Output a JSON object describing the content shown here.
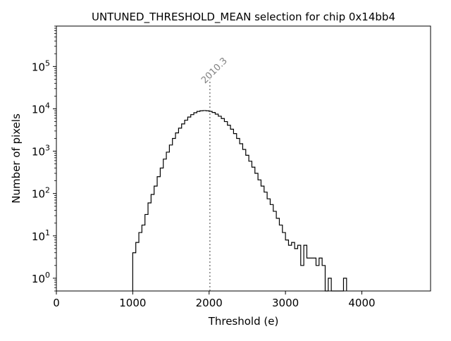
{
  "chart_data": {
    "type": "histogram",
    "title": "UNTUNED_THRESHOLD_MEAN selection for chip 0x14bb4",
    "xlabel": "Threshold (e)",
    "ylabel": "Number of pixels",
    "x_range": [
      0,
      4900
    ],
    "y_range": [
      0.5,
      900000
    ],
    "y_scale": "log",
    "x_ticks": [
      {
        "value": 0,
        "label": "0"
      },
      {
        "value": 1000,
        "label": "1000"
      },
      {
        "value": 2000,
        "label": "2000"
      },
      {
        "value": 3000,
        "label": "3000"
      },
      {
        "value": 4000,
        "label": "4000"
      }
    ],
    "y_ticks": [
      {
        "value": 1,
        "base": "10",
        "exp": "0"
      },
      {
        "value": 10,
        "base": "10",
        "exp": "1"
      },
      {
        "value": 100,
        "base": "10",
        "exp": "2"
      },
      {
        "value": 1000,
        "base": "10",
        "exp": "3"
      },
      {
        "value": 10000,
        "base": "10",
        "exp": "4"
      },
      {
        "value": 100000,
        "base": "10",
        "exp": "5"
      }
    ],
    "bin_width": 40,
    "series": [
      {
        "name": "pixels",
        "color": "#000000",
        "bins": [
          [
            1000,
            4
          ],
          [
            1040,
            7
          ],
          [
            1080,
            12
          ],
          [
            1120,
            18
          ],
          [
            1160,
            32
          ],
          [
            1200,
            60
          ],
          [
            1240,
            95
          ],
          [
            1280,
            150
          ],
          [
            1320,
            250
          ],
          [
            1360,
            400
          ],
          [
            1400,
            650
          ],
          [
            1440,
            950
          ],
          [
            1480,
            1400
          ],
          [
            1520,
            2000
          ],
          [
            1560,
            2700
          ],
          [
            1600,
            3500
          ],
          [
            1640,
            4400
          ],
          [
            1680,
            5400
          ],
          [
            1720,
            6400
          ],
          [
            1760,
            7300
          ],
          [
            1800,
            8100
          ],
          [
            1840,
            8700
          ],
          [
            1880,
            9000
          ],
          [
            1920,
            9100
          ],
          [
            1960,
            9000
          ],
          [
            2000,
            8700
          ],
          [
            2040,
            8200
          ],
          [
            2080,
            7500
          ],
          [
            2120,
            6700
          ],
          [
            2160,
            5900
          ],
          [
            2200,
            5000
          ],
          [
            2240,
            4100
          ],
          [
            2280,
            3300
          ],
          [
            2320,
            2600
          ],
          [
            2360,
            2000
          ],
          [
            2400,
            1500
          ],
          [
            2440,
            1100
          ],
          [
            2480,
            800
          ],
          [
            2520,
            580
          ],
          [
            2560,
            420
          ],
          [
            2600,
            300
          ],
          [
            2640,
            210
          ],
          [
            2680,
            150
          ],
          [
            2720,
            108
          ],
          [
            2760,
            75
          ],
          [
            2800,
            55
          ],
          [
            2840,
            38
          ],
          [
            2880,
            26
          ],
          [
            2920,
            18
          ],
          [
            2960,
            12
          ],
          [
            3000,
            8
          ],
          [
            3040,
            6
          ],
          [
            3080,
            7
          ],
          [
            3120,
            5
          ],
          [
            3160,
            6
          ],
          [
            3200,
            2
          ],
          [
            3240,
            6
          ],
          [
            3280,
            3
          ],
          [
            3320,
            3
          ],
          [
            3360,
            3
          ],
          [
            3400,
            2
          ],
          [
            3440,
            3
          ],
          [
            3480,
            2
          ],
          [
            3520,
            0
          ],
          [
            3560,
            1
          ],
          [
            3600,
            0
          ],
          [
            3640,
            0
          ],
          [
            3680,
            0
          ],
          [
            3720,
            0
          ],
          [
            3760,
            1
          ]
        ]
      }
    ],
    "annotations": [
      {
        "type": "vline",
        "x": 2010.3,
        "style": "dotted",
        "color": "#808080",
        "label": "2010.3"
      }
    ]
  }
}
